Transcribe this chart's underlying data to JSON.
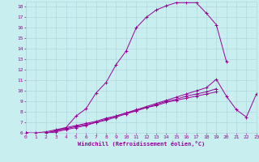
{
  "xlabel": "Windchill (Refroidissement éolien,°C)",
  "bg_color": "#c8eef0",
  "line_color": "#990099",
  "grid_color": "#b0d8dc",
  "xlim": [
    0,
    23
  ],
  "ylim": [
    6,
    18.5
  ],
  "xticks": [
    0,
    1,
    2,
    3,
    4,
    5,
    6,
    7,
    8,
    9,
    10,
    11,
    12,
    13,
    14,
    15,
    16,
    17,
    18,
    19,
    20,
    21,
    22,
    23
  ],
  "yticks": [
    6,
    7,
    8,
    9,
    10,
    11,
    12,
    13,
    14,
    15,
    16,
    17,
    18
  ],
  "series": [
    [
      6.0,
      5.9,
      5.9,
      6.2,
      6.5,
      7.6,
      8.3,
      9.8,
      10.8,
      12.5,
      13.8,
      16.0,
      17.0,
      17.7,
      18.1,
      18.4,
      18.4,
      18.4,
      17.4,
      16.3,
      12.8,
      null,
      null,
      null
    ],
    [
      6.0,
      5.9,
      5.9,
      6.1,
      6.3,
      6.5,
      6.7,
      7.0,
      7.3,
      7.6,
      7.9,
      8.2,
      8.5,
      8.8,
      9.1,
      9.4,
      9.7,
      10.0,
      10.3,
      11.1,
      9.5,
      8.2,
      7.5,
      9.7
    ],
    [
      6.0,
      5.9,
      6.0,
      6.2,
      6.4,
      6.6,
      6.8,
      7.0,
      7.2,
      7.5,
      7.8,
      8.1,
      8.4,
      8.7,
      9.0,
      9.2,
      9.5,
      9.7,
      9.9,
      10.2,
      null,
      null,
      null,
      null
    ],
    [
      6.0,
      6.0,
      6.1,
      6.3,
      6.5,
      6.7,
      6.9,
      7.1,
      7.4,
      7.6,
      7.9,
      8.1,
      8.4,
      8.6,
      8.9,
      9.1,
      9.3,
      9.5,
      9.7,
      9.9,
      null,
      null,
      null,
      null
    ]
  ]
}
